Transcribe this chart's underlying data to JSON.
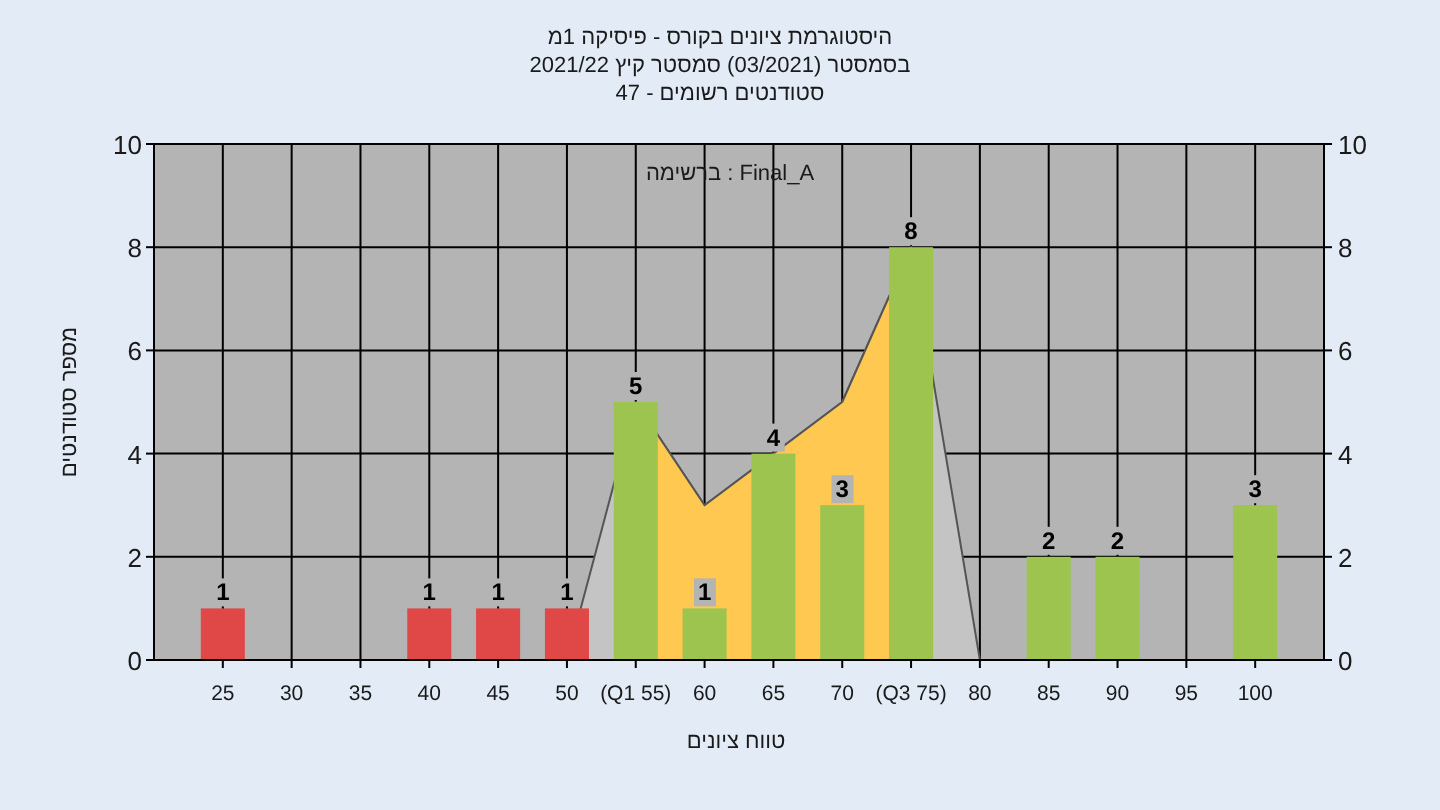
{
  "chart_data": {
    "type": "bar",
    "title": "היסטוגרמת ציונים בקורס - פיסיקה 1מ",
    "subtitle": "בסמסטר (03/2021) סמסטר קיץ 2021/22",
    "annotations": [
      "סטודנטים רשומים - 47",
      "Final_A : ברשימה"
    ],
    "xlabel": "טווח ציונים",
    "ylabel": "מספר סטודנטים",
    "xlim": [
      20,
      105
    ],
    "xticks": [
      25,
      30,
      35,
      40,
      45,
      50,
      {
        "value": 55,
        "label": "(Q1 55)"
      },
      60,
      65,
      70,
      {
        "value": 75,
        "label": "(Q3 75)"
      },
      80,
      85,
      90,
      95,
      100
    ],
    "ylim": [
      0,
      10
    ],
    "yticks": [
      0,
      2,
      4,
      6,
      8,
      10
    ],
    "y2lim": [
      0,
      10
    ],
    "y2ticks": [
      0,
      2,
      4,
      6,
      8,
      10
    ],
    "grid": true,
    "series": [
      {
        "type": "area",
        "color": "#c4c4c4",
        "x": [
          50,
          55,
          60,
          70,
          75,
          80
        ],
        "values": [
          0,
          5,
          3,
          5,
          8,
          0
        ]
      },
      {
        "type": "area",
        "color": "#ffc850",
        "x": [
          55,
          60,
          70,
          75
        ],
        "values": [
          5,
          3,
          5,
          8
        ]
      },
      {
        "x": [
          25,
          40,
          45,
          50,
          55,
          60,
          65,
          70,
          75,
          85,
          90,
          100
        ],
        "values": [
          1,
          1,
          1,
          1,
          5,
          1,
          4,
          3,
          8,
          2,
          2,
          3
        ],
        "colors": [
          "#e04848",
          "#e04848",
          "#e04848",
          "#e04848",
          "#9cc44e",
          "#9cc44e",
          "#9cc44e",
          "#9cc44e",
          "#9cc44e",
          "#9cc44e",
          "#9cc44e",
          "#9cc44e"
        ],
        "value_labels": [
          "1",
          "1",
          "1",
          "1",
          "5",
          "1",
          "4",
          "3",
          "8",
          "2",
          "2",
          "3"
        ]
      }
    ]
  }
}
